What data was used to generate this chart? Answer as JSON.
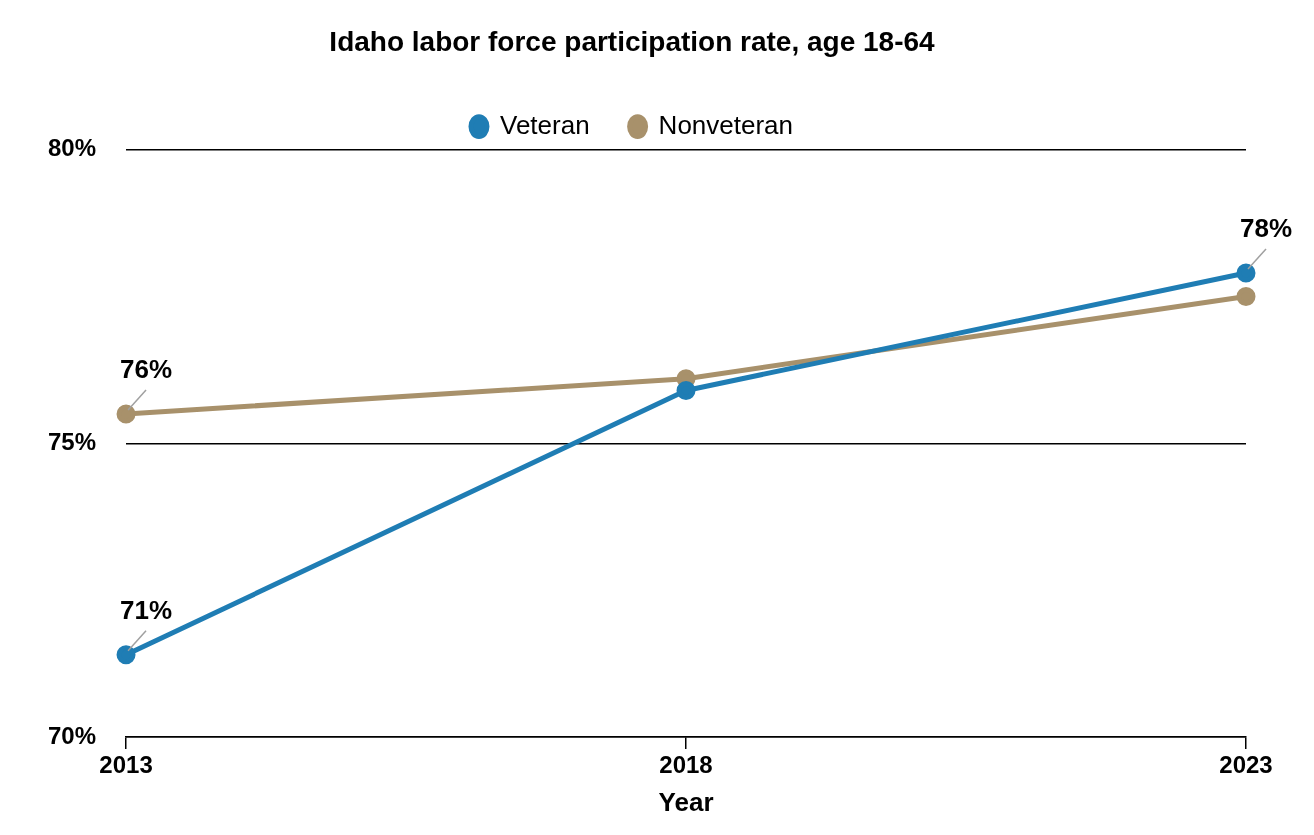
{
  "chart_data": {
    "type": "line",
    "title": "Idaho labor force participation rate, age 18-64",
    "xlabel": "Year",
    "categories": [
      "2013",
      "2018",
      "2023"
    ],
    "series": [
      {
        "name": "Veteran",
        "color": "#1f7db4",
        "values": [
          71.4,
          75.9,
          77.9
        ],
        "value_labels": [
          "71%",
          null,
          "78%"
        ]
      },
      {
        "name": "Nonveteran",
        "color": "#a8916b",
        "values": [
          75.5,
          76.1,
          77.5
        ],
        "value_labels": [
          "76%",
          null,
          null
        ]
      }
    ],
    "ylim": [
      70,
      80
    ],
    "yticks": [
      {
        "value": 70,
        "label": "70%"
      },
      {
        "value": 75,
        "label": "75%"
      },
      {
        "value": 80,
        "label": "80%"
      }
    ],
    "grid": "y",
    "legend": "top",
    "marker": "circle",
    "line_style": "solid"
  }
}
